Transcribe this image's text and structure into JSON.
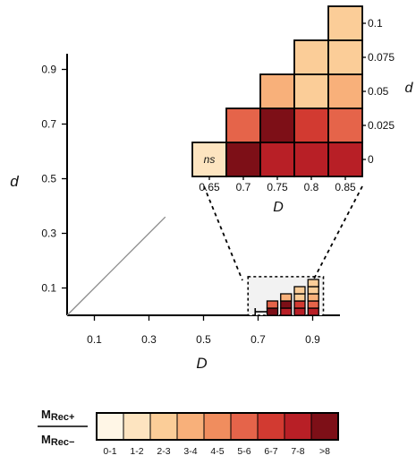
{
  "chart_data": [
    {
      "type": "heatmap",
      "title": "",
      "xlabel": "D",
      "ylabel": "d",
      "xlim": [
        0,
        1
      ],
      "ylim": [
        0,
        1
      ],
      "x_ticks": [
        "0.1",
        "0.3",
        "0.5",
        "0.7",
        "0.9"
      ],
      "y_ticks": [
        "0.1",
        "0.3",
        "0.5",
        "0.7",
        "0.9"
      ],
      "diagonal_line": {
        "d_equals_D": true,
        "from": 0,
        "to": 0.36
      },
      "zoom_region": {
        "D": [
          0.65,
          0.9
        ],
        "d": [
          0,
          0.125
        ]
      }
    },
    {
      "type": "heatmap",
      "title": "",
      "xlabel": "D",
      "ylabel": "d",
      "x_ticks": [
        "0.65",
        "0.7",
        "0.75",
        "0.8",
        "0.85"
      ],
      "y_ticks": [
        "0",
        "0.025",
        "0.05",
        "0.075",
        "0.1"
      ],
      "cell_note": {
        "D": 0.65,
        "d": 0,
        "text": "ns"
      },
      "cells": [
        {
          "D": 0.65,
          "d": 0,
          "bin": 1
        },
        {
          "D": 0.7,
          "d": 0,
          "bin": 8
        },
        {
          "D": 0.75,
          "d": 0,
          "bin": 7
        },
        {
          "D": 0.8,
          "d": 0,
          "bin": 7
        },
        {
          "D": 0.85,
          "d": 0,
          "bin": 7
        },
        {
          "D": 0.7,
          "d": 0.025,
          "bin": 5
        },
        {
          "D": 0.75,
          "d": 0.025,
          "bin": 8
        },
        {
          "D": 0.8,
          "d": 0.025,
          "bin": 6
        },
        {
          "D": 0.85,
          "d": 0.025,
          "bin": 5
        },
        {
          "D": 0.75,
          "d": 0.05,
          "bin": 3
        },
        {
          "D": 0.8,
          "d": 0.05,
          "bin": 2
        },
        {
          "D": 0.85,
          "d": 0.05,
          "bin": 3
        },
        {
          "D": 0.8,
          "d": 0.075,
          "bin": 2
        },
        {
          "D": 0.85,
          "d": 0.075,
          "bin": 2
        },
        {
          "D": 0.85,
          "d": 0.1,
          "bin": 2
        }
      ]
    }
  ],
  "colorbar": {
    "label_top": "M",
    "label_top_sub": "Rec+",
    "label_bottom": "M",
    "label_bottom_sub": "Rec−",
    "bins": [
      "0-1",
      "1-2",
      "2-3",
      "3-4",
      "4-5",
      "5-6",
      "6-7",
      "7-8",
      ">8"
    ],
    "colors": [
      "#fff6e6",
      "#fde4c0",
      "#fbcd98",
      "#f8b07a",
      "#f08d5e",
      "#e5644a",
      "#d23a31",
      "#b81f26",
      "#7d0f17"
    ]
  }
}
